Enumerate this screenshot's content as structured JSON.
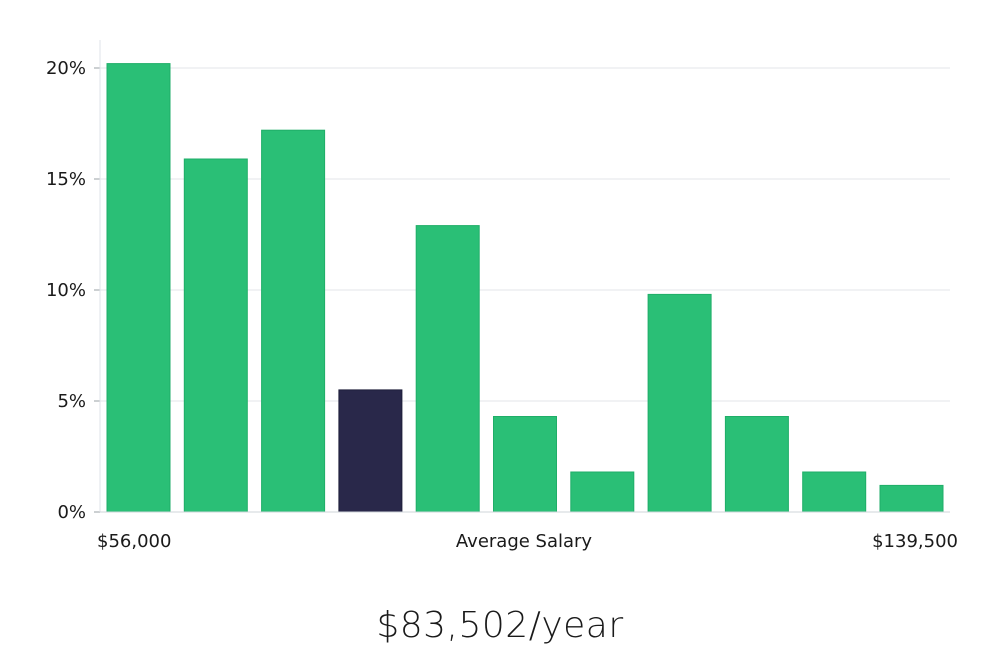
{
  "chart_data": {
    "type": "bar",
    "ylim": [
      0,
      20
    ],
    "yticks": [
      0,
      5,
      10,
      15,
      20
    ],
    "ytick_labels": [
      "0%",
      "5%",
      "10%",
      "15%",
      "20%"
    ],
    "values": [
      20.2,
      15.9,
      17.2,
      5.5,
      12.9,
      4.3,
      1.8,
      9.8,
      4.3,
      1.8,
      1.2
    ],
    "highlight_index": 3,
    "bar_color": "#2abf76",
    "highlight_color": "#29284a",
    "grid": true,
    "x_left_label": "$56,000",
    "x_center_label": "Average Salary",
    "x_right_label": "$139,500"
  },
  "headline": "$83,502/year"
}
